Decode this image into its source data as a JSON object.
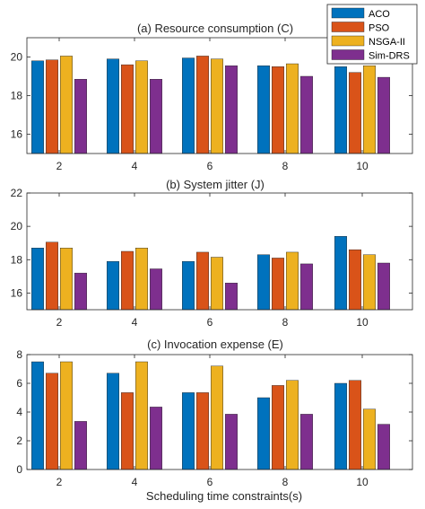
{
  "chart_data": [
    {
      "type": "bar",
      "title": "(a) Resource consumption (C)",
      "categories": [
        "2",
        "4",
        "6",
        "8",
        "10"
      ],
      "ylim": [
        15,
        21
      ],
      "yticks": [
        16,
        18,
        20
      ],
      "grid": false,
      "legend": "top-right",
      "series": [
        {
          "name": "ACO",
          "values": [
            19.8,
            19.9,
            19.95,
            19.55,
            19.5
          ]
        },
        {
          "name": "PSO",
          "values": [
            19.85,
            19.6,
            20.05,
            19.5,
            19.2
          ]
        },
        {
          "name": "NSGA-II",
          "values": [
            20.05,
            19.8,
            19.9,
            19.65,
            19.55
          ]
        },
        {
          "name": "Sim-DRS",
          "values": [
            18.85,
            18.85,
            19.55,
            19.0,
            18.95
          ]
        }
      ]
    },
    {
      "type": "bar",
      "title": "(b) System jitter (J)",
      "categories": [
        "2",
        "4",
        "6",
        "8",
        "10"
      ],
      "ylim": [
        15,
        22
      ],
      "yticks": [
        16,
        18,
        20,
        22
      ],
      "grid": false,
      "series": [
        {
          "name": "ACO",
          "values": [
            18.7,
            17.9,
            17.9,
            18.3,
            19.4
          ]
        },
        {
          "name": "PSO",
          "values": [
            19.05,
            18.5,
            18.45,
            18.1,
            18.6
          ]
        },
        {
          "name": "NSGA-II",
          "values": [
            18.7,
            18.7,
            18.15,
            18.45,
            18.3
          ]
        },
        {
          "name": "Sim-DRS",
          "values": [
            17.2,
            17.45,
            16.6,
            17.75,
            17.8
          ]
        }
      ]
    },
    {
      "type": "bar",
      "title": "(c) Invocation expense (E)",
      "categories": [
        "2",
        "4",
        "6",
        "8",
        "10"
      ],
      "xlabel": "Scheduling time constraints(s)",
      "ylim": [
        0,
        8
      ],
      "yticks": [
        0,
        2,
        4,
        6,
        8
      ],
      "grid": false,
      "series": [
        {
          "name": "ACO",
          "values": [
            7.5,
            6.7,
            5.35,
            5.0,
            6.0
          ]
        },
        {
          "name": "PSO",
          "values": [
            6.7,
            5.35,
            5.35,
            5.85,
            6.2
          ]
        },
        {
          "name": "NSGA-II",
          "values": [
            7.5,
            7.5,
            7.2,
            6.2,
            4.2
          ]
        },
        {
          "name": "Sim-DRS",
          "values": [
            3.35,
            4.35,
            3.85,
            3.85,
            3.15
          ]
        }
      ]
    }
  ],
  "colors": {
    "ACO": "#0072BD",
    "PSO": "#D95319",
    "NSGA-II": "#EDB120",
    "Sim-DRS": "#7E2F8E",
    "axis": "#262626"
  }
}
